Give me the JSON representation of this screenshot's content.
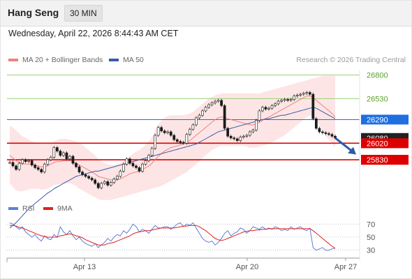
{
  "header": {
    "title": "Hang Seng",
    "timeframe": "30 MIN",
    "datetime": "Wednesday, April 22, 2026 8:44:43 AM CET"
  },
  "legend": {
    "ma20_label": "MA 20 + Bollinger Bands",
    "ma50_label": "MA 50",
    "rsi_label": "RSI",
    "ma9_label": "9MA",
    "copyright": "Research © 2026 Trading Central"
  },
  "colors": {
    "ma20": "#f08080",
    "bands": "#fde0e0",
    "ma50": "#3a5aa8",
    "rsi": "#5f7fd6",
    "rsi_ma": "#e02020",
    "resistance": "#9bd07a",
    "support": "#dd0000",
    "pivot": "#1f6fe0",
    "candle_up": "#1a1a1a",
    "arrow": "#2d5aa8"
  },
  "chart_data": {
    "type": "candlestick",
    "price_axis": {
      "min": 25400,
      "max": 26900
    },
    "x_ticks": [
      "Apr 13",
      "Apr 20",
      "Apr 27"
    ],
    "levels": [
      {
        "value": 26800,
        "label": "26800",
        "kind": "resistance"
      },
      {
        "value": 26530,
        "label": "26530",
        "kind": "resistance"
      },
      {
        "value": 26290,
        "label": "26290",
        "kind": "pivot"
      },
      {
        "value": 26020,
        "label": "26020",
        "kind": "support"
      },
      {
        "value": 25830,
        "label": "25830",
        "kind": "support"
      }
    ],
    "last_price_label": "26080",
    "close": [
      25800,
      25760,
      25720,
      25790,
      25830,
      25810,
      25820,
      25770,
      25740,
      25720,
      25690,
      25780,
      25830,
      25860,
      25970,
      25930,
      25880,
      25910,
      25840,
      25870,
      25790,
      25750,
      25690,
      25660,
      25640,
      25620,
      25600,
      25560,
      25510,
      25560,
      25580,
      25540,
      25570,
      25610,
      25640,
      25700,
      25780,
      25840,
      25790,
      25760,
      25740,
      25700,
      25780,
      25820,
      25880,
      25960,
      26110,
      26200,
      26160,
      26140,
      26150,
      26110,
      26060,
      26040,
      26030,
      26020,
      26120,
      26180,
      26230,
      26310,
      26340,
      26390,
      26430,
      26460,
      26480,
      26500,
      26510,
      26450,
      26190,
      26100,
      26080,
      26070,
      26050,
      26090,
      26100,
      26110,
      26150,
      26170,
      26280,
      26390,
      26430,
      26410,
      26420,
      26450,
      26470,
      26500,
      26510,
      26520,
      26510,
      26520,
      26560,
      26570,
      26580,
      26590,
      26600,
      26580,
      26300,
      26190,
      26150,
      26140,
      26130,
      26120,
      26100,
      26080
    ],
    "ma20": [
      25880,
      25850,
      25820,
      25800,
      25790,
      25780,
      25780,
      25780,
      25770,
      25760,
      25750,
      25750,
      25760,
      25780,
      25800,
      25810,
      25810,
      25820,
      25820,
      25820,
      25810,
      25790,
      25770,
      25750,
      25730,
      25710,
      25690,
      25670,
      25640,
      25630,
      25620,
      25610,
      25600,
      25600,
      25600,
      25610,
      25630,
      25650,
      25670,
      25680,
      25690,
      25700,
      25720,
      25740,
      25760,
      25790,
      25830,
      25870,
      25900,
      25930,
      25950,
      25970,
      25980,
      25990,
      26000,
      26010,
      26030,
      26050,
      26080,
      26110,
      26140,
      26170,
      26200,
      26230,
      26260,
      26290,
      26310,
      26320,
      26310,
      26300,
      26290,
      26280,
      26270,
      26260,
      26250,
      26240,
      26230,
      26230,
      26240,
      26260,
      26280,
      26300,
      26320,
      26340,
      26360,
      26380,
      26400,
      26420,
      26440,
      26460,
      26480,
      26500,
      26520,
      26540,
      26560,
      26560,
      26540,
      26510,
      26480,
      26450,
      26420,
      26390,
      26360,
      26320
    ],
    "bb_upper": [
      26220,
      26200,
      26170,
      26130,
      26100,
      26080,
      26060,
      26040,
      26030,
      26020,
      26010,
      26010,
      26010,
      26020,
      26040,
      26060,
      26070,
      26070,
      26070,
      26060,
      26050,
      26040,
      26020,
      26000,
      25970,
      25940,
      25910,
      25880,
      25840,
      25810,
      25790,
      25780,
      25770,
      25770,
      25780,
      25790,
      25810,
      25840,
      25870,
      25900,
      25920,
      25940,
      25970,
      26000,
      26040,
      26090,
      26160,
      26230,
      26280,
      26310,
      26330,
      26340,
      26340,
      26340,
      26340,
      26340,
      26350,
      26360,
      26380,
      26410,
      26440,
      26470,
      26500,
      26530,
      26550,
      26570,
      26580,
      26590,
      26590,
      26590,
      26590,
      26590,
      26590,
      26590,
      26590,
      26590,
      26590,
      26590,
      26590,
      26590,
      26600,
      26610,
      26620,
      26630,
      26640,
      26650,
      26660,
      26670,
      26680,
      26690,
      26700,
      26710,
      26720,
      26730,
      26740,
      26750,
      26760,
      26770,
      26780,
      26790,
      26790,
      26790,
      26790,
      26790
    ],
    "bb_lower": [
      25560,
      25520,
      25480,
      25470,
      25470,
      25480,
      25490,
      25500,
      25500,
      25500,
      25490,
      25490,
      25500,
      25520,
      25540,
      25550,
      25550,
      25560,
      25560,
      25560,
      25550,
      25530,
      25500,
      25480,
      25460,
      25440,
      25420,
      25400,
      25380,
      25370,
      25370,
      25370,
      25370,
      25380,
      25390,
      25400,
      25410,
      25420,
      25430,
      25440,
      25450,
      25460,
      25470,
      25480,
      25490,
      25500,
      25510,
      25520,
      25530,
      25550,
      25570,
      25590,
      25610,
      25630,
      25650,
      25670,
      25690,
      25720,
      25750,
      25780,
      25810,
      25850,
      25880,
      25910,
      25940,
      25960,
      25980,
      25990,
      25990,
      25990,
      25990,
      25990,
      25990,
      25990,
      25990,
      25980,
      25970,
      25970,
      25970,
      25980,
      25990,
      26000,
      26010,
      26030,
      26050,
      26070,
      26090,
      26110,
      26140,
      26170,
      26200,
      26230,
      26260,
      26290,
      26320,
      26340,
      26320,
      26280,
      26230,
      26160,
      26100,
      26060,
      26020,
      25970
    ],
    "ma50": [
      25050,
      25080,
      25110,
      25150,
      25190,
      25230,
      25270,
      25300,
      25330,
      25360,
      25390,
      25420,
      25450,
      25470,
      25500,
      25520,
      25540,
      25560,
      25580,
      25600,
      25620,
      25640,
      25650,
      25660,
      25670,
      25680,
      25690,
      25700,
      25700,
      25710,
      25720,
      25730,
      25740,
      25750,
      25760,
      25770,
      25780,
      25790,
      25800,
      25810,
      25820,
      25830,
      25840,
      25850,
      25860,
      25870,
      25880,
      25890,
      25900,
      25910,
      25920,
      25930,
      25940,
      25950,
      25960,
      25970,
      25980,
      25990,
      26000,
      26010,
      26030,
      26050,
      26070,
      26090,
      26110,
      26130,
      26150,
      26160,
      26170,
      26180,
      26190,
      26200,
      26210,
      26220,
      26230,
      26240,
      26250,
      26260,
      26270,
      26280,
      26290,
      26300,
      26300,
      26310,
      26320,
      26330,
      26340,
      26340,
      26350,
      26360,
      26370,
      26380,
      26390,
      26400,
      26410,
      26420,
      26430,
      26420,
      26400,
      26380,
      26360,
      26340,
      26320,
      26300
    ],
    "rsi_axis": {
      "min": 20,
      "max": 80,
      "ticks": [
        70,
        50,
        30
      ]
    },
    "rsi": [
      72,
      70,
      66,
      62,
      66,
      58,
      54,
      50,
      54,
      48,
      44,
      52,
      48,
      46,
      54,
      50,
      66,
      58,
      54,
      60,
      52,
      46,
      50,
      44,
      40,
      38,
      36,
      40,
      34,
      38,
      42,
      48,
      44,
      50,
      54,
      52,
      60,
      56,
      62,
      70,
      66,
      58,
      62,
      60,
      56,
      62,
      68,
      64,
      64,
      66,
      66,
      62,
      66,
      70,
      72,
      66,
      70,
      68,
      72,
      64,
      56,
      48,
      44,
      42,
      44,
      38,
      42,
      48,
      56,
      60,
      52,
      56,
      58,
      64,
      62,
      56,
      60,
      66,
      64,
      62,
      66,
      62,
      64,
      62,
      66,
      64,
      60,
      62,
      60,
      66,
      62,
      64,
      66,
      62,
      60,
      64,
      34,
      30,
      32,
      34,
      30,
      30,
      32,
      33
    ],
    "rsi_ma": [
      68,
      68,
      67,
      65,
      64,
      62,
      60,
      58,
      56,
      54,
      52,
      51,
      50,
      50,
      50,
      50,
      52,
      53,
      54,
      55,
      54,
      52,
      51,
      49,
      46,
      44,
      42,
      40,
      38,
      38,
      38,
      40,
      41,
      42,
      44,
      46,
      48,
      50,
      52,
      55,
      57,
      58,
      59,
      60,
      60,
      61,
      62,
      63,
      64,
      64,
      64,
      64,
      64,
      65,
      66,
      67,
      67,
      68,
      68,
      68,
      66,
      63,
      60,
      56,
      52,
      48,
      46,
      45,
      46,
      48,
      50,
      52,
      54,
      56,
      58,
      59,
      60,
      60,
      61,
      61,
      62,
      62,
      63,
      63,
      63,
      63,
      63,
      63,
      63,
      63,
      63,
      63,
      63,
      63,
      63,
      63,
      60,
      56,
      52,
      48,
      44,
      40,
      36,
      33
    ]
  }
}
